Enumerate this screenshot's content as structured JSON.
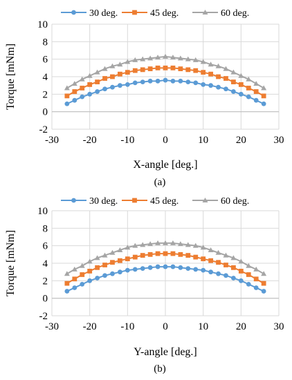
{
  "colors": {
    "s30": "#5b9bd5",
    "s45": "#ed7d31",
    "s60": "#a5a5a5",
    "grid": "#d9d9d9",
    "axis": "#000000"
  },
  "chart_data": [
    {
      "type": "line",
      "caption": "(a)",
      "xlabel": "X-angle [deg.]",
      "ylabel": "Torque [mNm]",
      "xlim": [
        -30,
        30
      ],
      "ylim": [
        -2,
        10
      ],
      "xticks": [
        -30,
        -20,
        -10,
        0,
        10,
        20,
        30
      ],
      "yticks": [
        -2,
        0,
        2,
        4,
        6,
        8,
        10
      ],
      "grid": true,
      "legend_position": "top",
      "x": [
        -26,
        -24,
        -22,
        -20,
        -18,
        -16,
        -14,
        -12,
        -10,
        -8,
        -6,
        -4,
        -2,
        0,
        2,
        4,
        6,
        8,
        10,
        12,
        14,
        16,
        18,
        20,
        22,
        24,
        26
      ],
      "series": [
        {
          "name": "30 deg.",
          "marker": "circle",
          "color": "#5b9bd5",
          "values": [
            0.9,
            1.3,
            1.7,
            2.0,
            2.3,
            2.6,
            2.8,
            3.0,
            3.1,
            3.3,
            3.4,
            3.5,
            3.5,
            3.6,
            3.5,
            3.5,
            3.4,
            3.3,
            3.1,
            3.0,
            2.8,
            2.6,
            2.3,
            2.0,
            1.7,
            1.3,
            0.9
          ]
        },
        {
          "name": "45 deg.",
          "marker": "square",
          "color": "#ed7d31",
          "values": [
            1.8,
            2.3,
            2.7,
            3.1,
            3.4,
            3.8,
            4.0,
            4.3,
            4.5,
            4.7,
            4.8,
            4.9,
            5.0,
            5.0,
            5.0,
            4.9,
            4.8,
            4.7,
            4.5,
            4.3,
            4.0,
            3.8,
            3.4,
            3.1,
            2.7,
            2.3,
            1.8
          ]
        },
        {
          "name": "60 deg.",
          "marker": "triangle",
          "color": "#a5a5a5",
          "values": [
            2.7,
            3.2,
            3.7,
            4.1,
            4.5,
            4.9,
            5.2,
            5.4,
            5.7,
            5.9,
            6.0,
            6.1,
            6.2,
            6.3,
            6.2,
            6.1,
            6.0,
            5.9,
            5.7,
            5.4,
            5.2,
            4.9,
            4.5,
            4.1,
            3.7,
            3.2,
            2.7
          ]
        }
      ]
    },
    {
      "type": "line",
      "caption": "(b)",
      "xlabel": "Y-angle [deg.]",
      "ylabel": "Torque [mNm]",
      "xlim": [
        -30,
        30
      ],
      "ylim": [
        -2,
        10
      ],
      "xticks": [
        -30,
        -20,
        -10,
        0,
        10,
        20,
        30
      ],
      "yticks": [
        -2,
        0,
        2,
        4,
        6,
        8,
        10
      ],
      "grid": true,
      "legend_position": "top",
      "x": [
        -26,
        -24,
        -22,
        -20,
        -18,
        -16,
        -14,
        -12,
        -10,
        -8,
        -6,
        -4,
        -2,
        0,
        2,
        4,
        6,
        8,
        10,
        12,
        14,
        16,
        18,
        20,
        22,
        24,
        26
      ],
      "series": [
        {
          "name": "30 deg.",
          "marker": "circle",
          "color": "#5b9bd5",
          "values": [
            0.8,
            1.2,
            1.6,
            2.0,
            2.3,
            2.6,
            2.8,
            3.0,
            3.2,
            3.3,
            3.4,
            3.5,
            3.6,
            3.6,
            3.6,
            3.5,
            3.4,
            3.3,
            3.2,
            3.0,
            2.8,
            2.6,
            2.3,
            2.0,
            1.6,
            1.2,
            0.8
          ]
        },
        {
          "name": "45 deg.",
          "marker": "square",
          "color": "#ed7d31",
          "values": [
            1.7,
            2.2,
            2.7,
            3.1,
            3.5,
            3.8,
            4.1,
            4.3,
            4.5,
            4.7,
            4.9,
            5.0,
            5.1,
            5.1,
            5.1,
            5.0,
            4.9,
            4.7,
            4.5,
            4.3,
            4.1,
            3.8,
            3.5,
            3.1,
            2.7,
            2.2,
            1.7
          ]
        },
        {
          "name": "60 deg.",
          "marker": "triangle",
          "color": "#a5a5a5",
          "values": [
            2.8,
            3.3,
            3.7,
            4.2,
            4.6,
            4.9,
            5.2,
            5.5,
            5.8,
            6.0,
            6.1,
            6.2,
            6.3,
            6.3,
            6.3,
            6.2,
            6.1,
            6.0,
            5.8,
            5.5,
            5.2,
            4.9,
            4.6,
            4.2,
            3.7,
            3.3,
            2.8
          ]
        }
      ]
    }
  ]
}
